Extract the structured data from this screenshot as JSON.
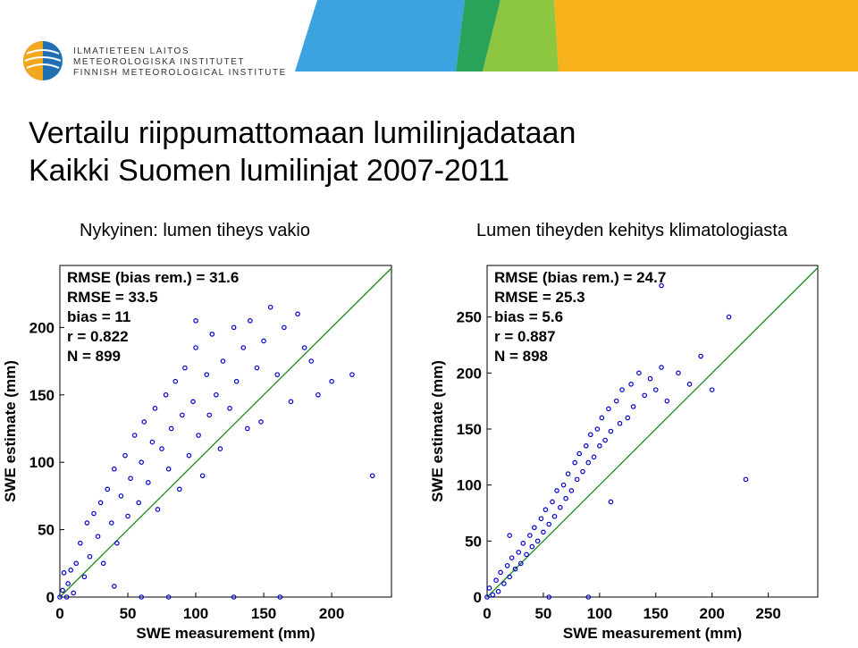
{
  "header": {
    "org_lines": [
      "ILMATIETEEN LAITOS",
      "METEOROLOGISKA INSTITUTET",
      "FINNISH METEOROLOGICAL INSTITUTE"
    ],
    "title_lines": [
      "Vertailu riippumattomaan lumilinjadataan",
      "Kaikki Suomen lumilinjat 2007-2011"
    ]
  },
  "chart_data": [
    {
      "type": "scatter",
      "title": "Nykyinen: lumen tiheys vakio",
      "x_label": "SWE measurement (mm)",
      "y_label": "SWE estimate (mm)",
      "annotations": [
        "RMSE (bias rem.) = 31.6",
        "RMSE = 33.5",
        "bias = 11",
        "r = 0.822",
        "N = 899"
      ],
      "color": "#0000cc",
      "line_color": "#1a8a1a",
      "xlim": [
        0,
        244
      ],
      "ylim": [
        0,
        246
      ],
      "xticks": [
        0,
        50,
        100,
        150,
        200
      ],
      "yticks": [
        0,
        50,
        100,
        150,
        200
      ],
      "x": [
        0,
        2,
        3,
        5,
        6,
        8,
        10,
        12,
        15,
        18,
        20,
        22,
        25,
        28,
        30,
        32,
        35,
        38,
        40,
        42,
        45,
        48,
        50,
        52,
        55,
        58,
        60,
        62,
        65,
        68,
        70,
        72,
        75,
        78,
        80,
        82,
        85,
        88,
        90,
        92,
        95,
        98,
        100,
        102,
        105,
        108,
        110,
        112,
        115,
        118,
        120,
        125,
        128,
        130,
        135,
        138,
        140,
        145,
        148,
        150,
        155,
        160,
        165,
        170,
        175,
        180,
        185,
        190,
        200,
        215,
        230,
        128,
        80,
        60,
        162,
        40,
        100
      ],
      "y": [
        0,
        5,
        18,
        0,
        10,
        20,
        3,
        25,
        40,
        15,
        55,
        30,
        62,
        45,
        70,
        25,
        80,
        55,
        95,
        40,
        75,
        105,
        60,
        88,
        120,
        70,
        100,
        130,
        85,
        115,
        140,
        65,
        110,
        150,
        95,
        125,
        160,
        80,
        135,
        170,
        105,
        145,
        185,
        120,
        90,
        165,
        135,
        195,
        150,
        110,
        175,
        140,
        200,
        160,
        185,
        125,
        205,
        170,
        130,
        190,
        215,
        165,
        200,
        145,
        210,
        185,
        175,
        150,
        160,
        165,
        90,
        0,
        0,
        0,
        0,
        8,
        205
      ]
    },
    {
      "type": "scatter",
      "title": "Lumen tiheyden kehitys klimatologiasta",
      "x_label": "SWE measurement (mm)",
      "y_label": "SWE estimate (mm)",
      "annotations": [
        "RMSE (bias rem.) = 24.7",
        "RMSE = 25.3",
        "bias = 5.6",
        "r = 0.887",
        "N = 898"
      ],
      "color": "#0000cc",
      "line_color": "#1a8a1a",
      "xlim": [
        0,
        294
      ],
      "ylim": [
        0,
        296
      ],
      "xticks": [
        0,
        50,
        100,
        150,
        200,
        250
      ],
      "yticks": [
        0,
        50,
        100,
        150,
        200,
        250
      ],
      "x": [
        0,
        2,
        5,
        8,
        10,
        12,
        15,
        18,
        20,
        22,
        25,
        28,
        30,
        32,
        35,
        38,
        40,
        42,
        45,
        48,
        50,
        52,
        55,
        58,
        60,
        62,
        65,
        68,
        70,
        72,
        75,
        78,
        80,
        82,
        85,
        88,
        90,
        92,
        95,
        98,
        100,
        102,
        105,
        108,
        110,
        115,
        118,
        120,
        125,
        128,
        130,
        135,
        140,
        145,
        150,
        155,
        160,
        170,
        180,
        190,
        200,
        215,
        230,
        155,
        55,
        90,
        20,
        110
      ],
      "y": [
        0,
        8,
        2,
        15,
        5,
        22,
        12,
        28,
        18,
        35,
        25,
        40,
        30,
        48,
        38,
        55,
        45,
        62,
        50,
        70,
        58,
        78,
        65,
        85,
        72,
        95,
        80,
        100,
        88,
        110,
        95,
        120,
        105,
        128,
        112,
        135,
        120,
        145,
        125,
        150,
        135,
        160,
        140,
        168,
        148,
        175,
        155,
        185,
        160,
        190,
        170,
        200,
        180,
        195,
        185,
        205,
        175,
        200,
        190,
        215,
        185,
        250,
        105,
        278,
        0,
        0,
        55,
        85
      ]
    }
  ]
}
